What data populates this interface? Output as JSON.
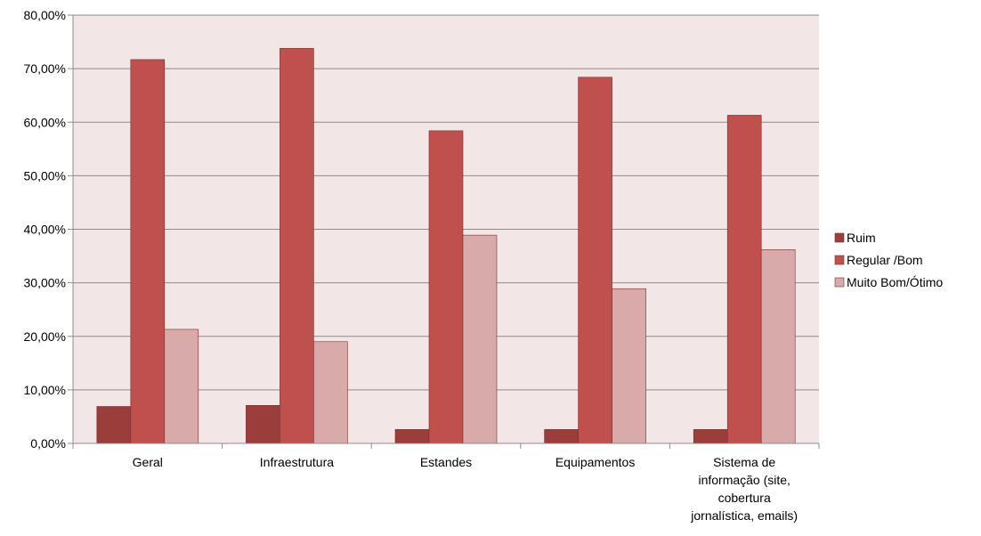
{
  "chart_data": {
    "type": "bar",
    "title": "",
    "xlabel": "",
    "ylabel": "",
    "ylim": [
      0,
      80
    ],
    "y_tick_step": 10,
    "y_tick_format": "percent_comma_2dp",
    "y_tick_labels": [
      "0,00%",
      "10,00%",
      "20,00%",
      "30,00%",
      "40,00%",
      "50,00%",
      "60,00%",
      "70,00%",
      "80,00%"
    ],
    "grid": true,
    "legend_position": "right",
    "plot_background": "#f2e6e6",
    "categories": [
      [
        "Geral"
      ],
      [
        "Infraestrutura"
      ],
      [
        "Estandes"
      ],
      [
        "Equipamentos"
      ],
      [
        "Sistema de",
        "informação (site,",
        "cobertura",
        "jornalística, emails)"
      ]
    ],
    "series": [
      {
        "name": "Ruim",
        "color": "#9b3d3b",
        "values": [
          6.9,
          7.1,
          2.6,
          2.6,
          2.6
        ]
      },
      {
        "name": "Regular /Bom",
        "color": "#c0504d",
        "values": [
          71.7,
          73.8,
          58.4,
          68.4,
          61.3
        ]
      },
      {
        "name": "Muito Bom/Ótimo",
        "color": "#d9aaaa",
        "values": [
          21.3,
          19.0,
          38.9,
          28.9,
          36.2
        ]
      }
    ]
  }
}
